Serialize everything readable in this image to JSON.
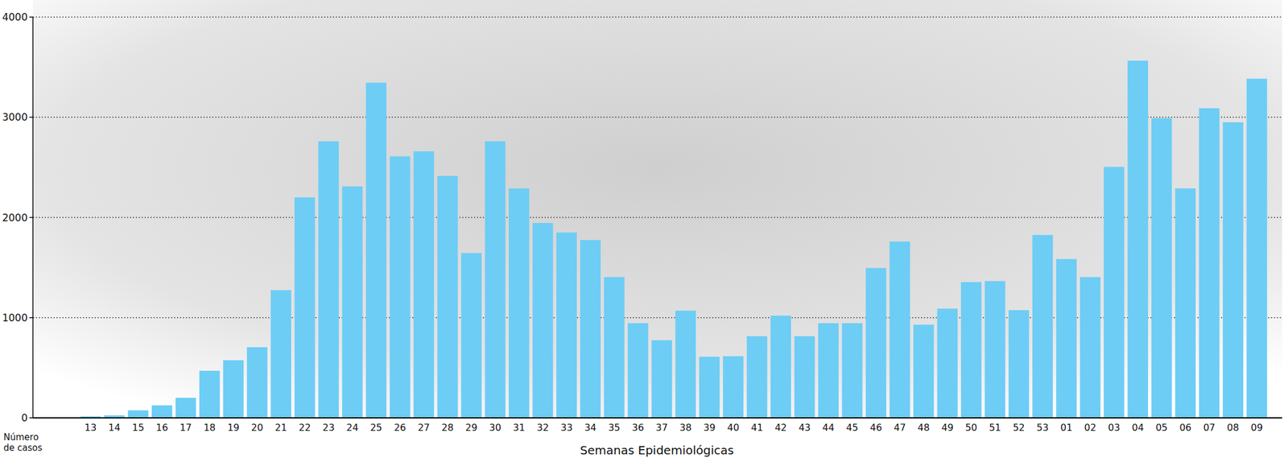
{
  "chart_data": {
    "type": "bar",
    "x_label": "Semanas Epidemiológicas",
    "y_label": "Número de casos",
    "categories": [
      "13",
      "14",
      "15",
      "16",
      "17",
      "18",
      "19",
      "20",
      "21",
      "22",
      "23",
      "24",
      "25",
      "26",
      "27",
      "28",
      "29",
      "30",
      "31",
      "32",
      "33",
      "34",
      "35",
      "36",
      "37",
      "38",
      "39",
      "40",
      "41",
      "42",
      "43",
      "44",
      "45",
      "46",
      "47",
      "48",
      "49",
      "50",
      "51",
      "52",
      "53",
      "01",
      "02",
      "03",
      "04",
      "05",
      "06",
      "07",
      "08",
      "09"
    ],
    "values": [
      15,
      25,
      75,
      125,
      200,
      470,
      575,
      705,
      1275,
      2200,
      2760,
      2310,
      3345,
      2610,
      2660,
      2415,
      1645,
      2760,
      2290,
      1945,
      1850,
      1775,
      1405,
      945,
      775,
      1070,
      610,
      615,
      815,
      1020,
      815,
      945,
      945,
      1495,
      1760,
      930,
      1090,
      1355,
      1365,
      1075,
      1825,
      1585,
      1405,
      2505,
      3565,
      2990,
      2290,
      3090,
      2950,
      3385
    ],
    "color": "#6dcdf5",
    "ylim": [
      0,
      4000
    ],
    "yticks": [
      0,
      1000,
      2000,
      3000,
      4000
    ],
    "grid": true
  }
}
